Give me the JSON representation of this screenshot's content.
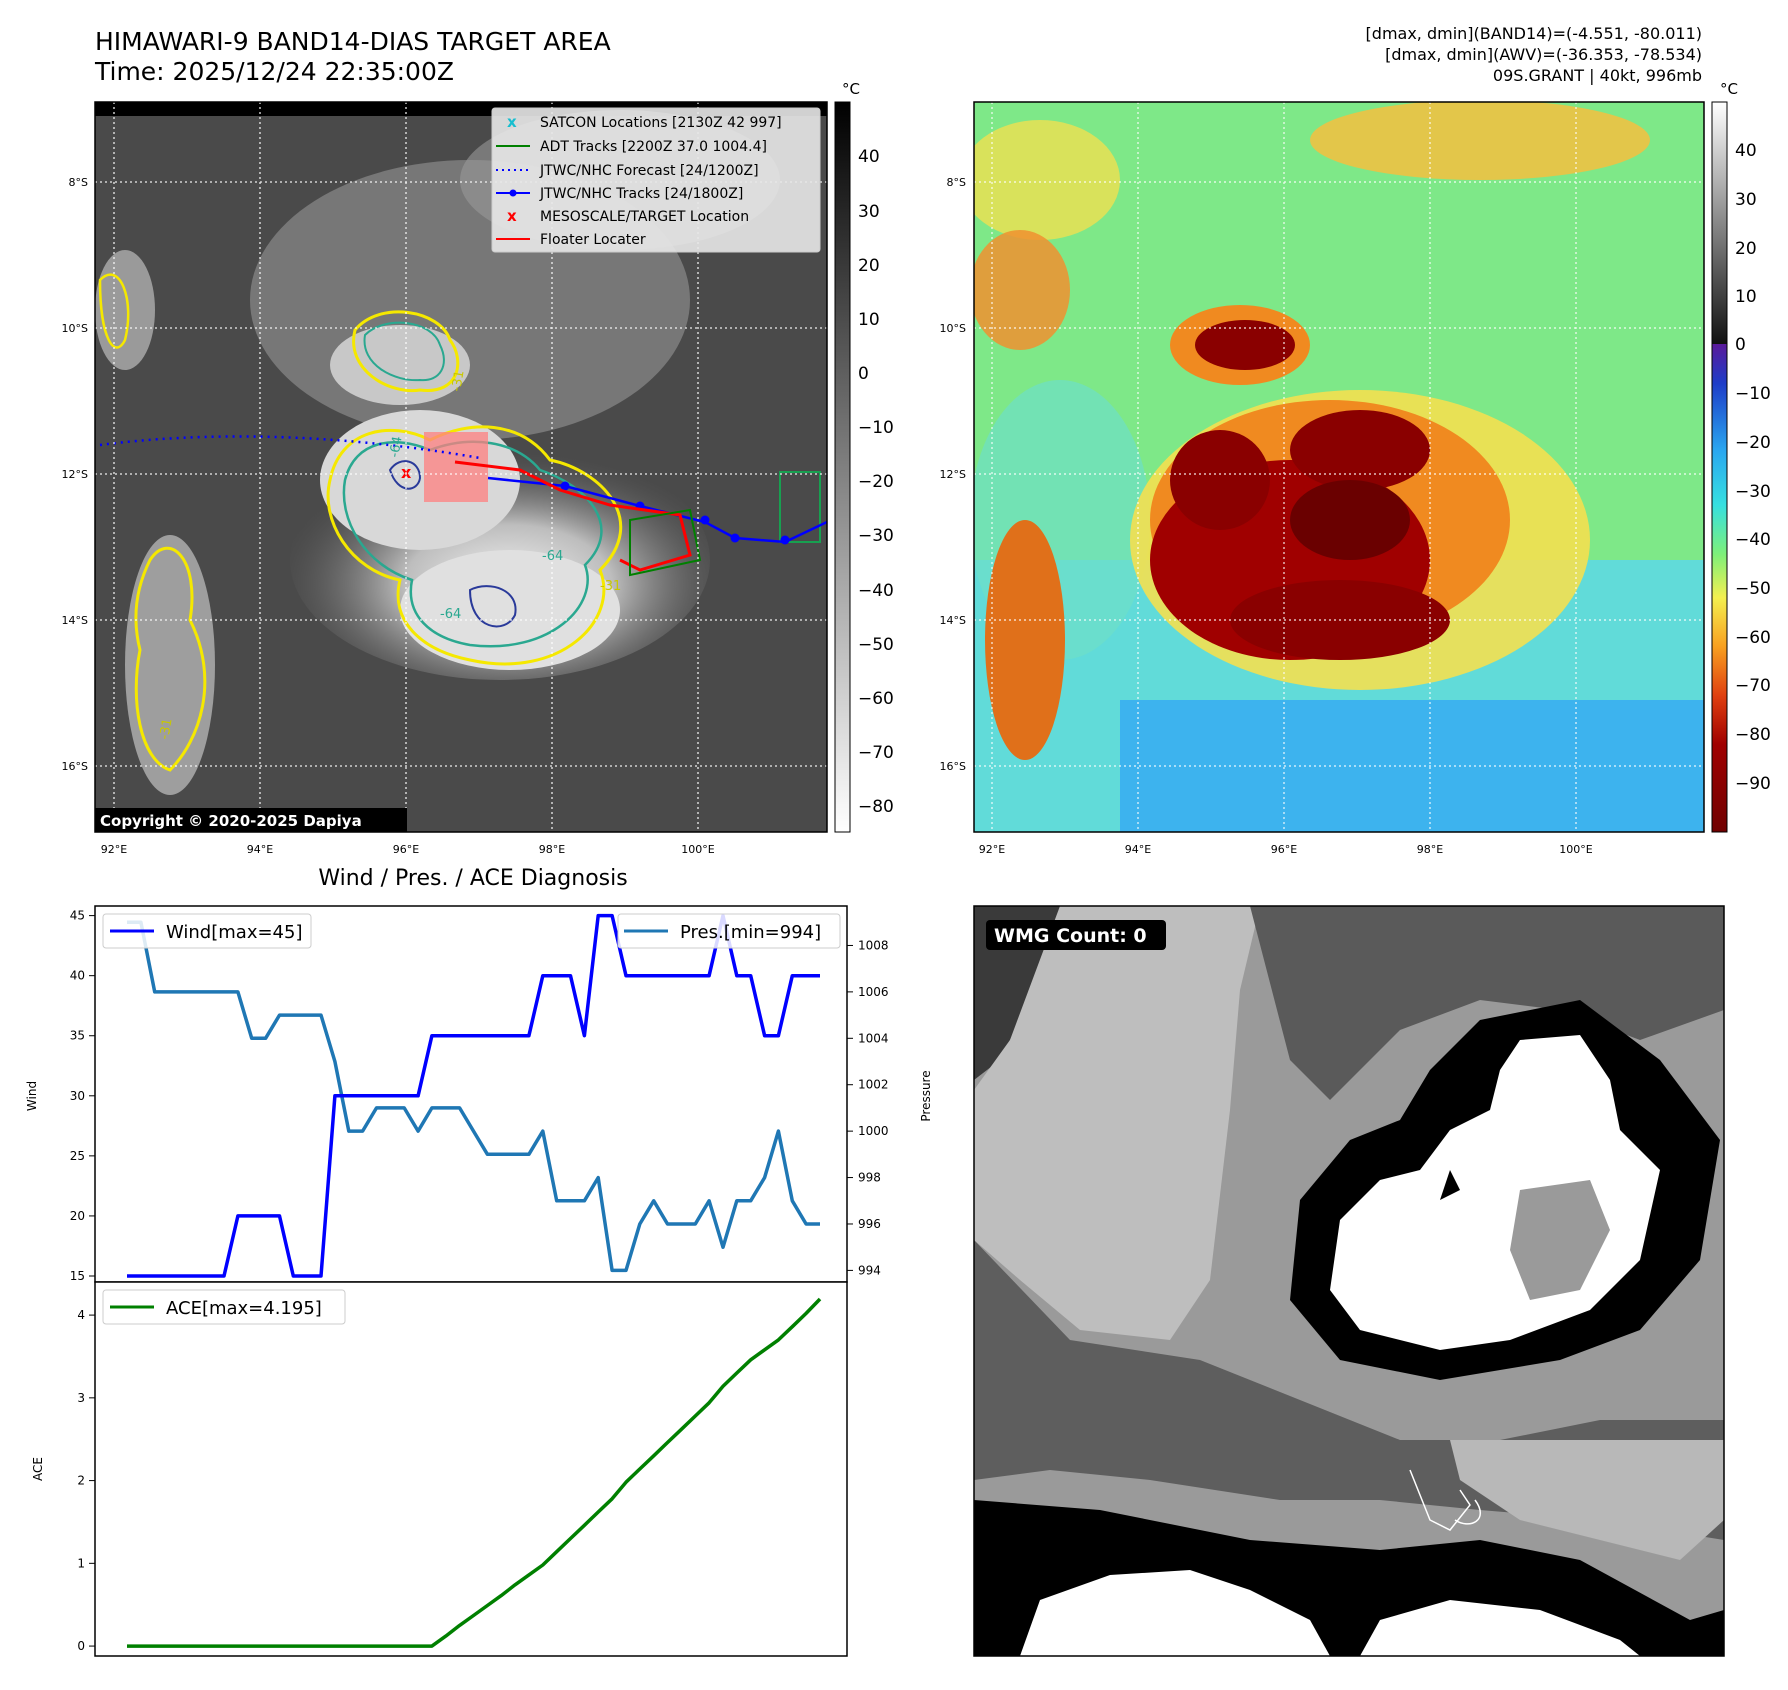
{
  "header": {
    "title_line1": "HIMAWARI-9 BAND14-DIAS TARGET AREA",
    "title_line2": "Time: 2025/12/24 22:35:00Z",
    "info_line1": "[dmax, dmin](BAND14)=(-4.551, -80.011)",
    "info_line2": "[dmax, dmin](AWV)=(-36.353, -78.534)",
    "info_line3": "09S.GRANT | 40kt, 996mb"
  },
  "map_ir": {
    "lat_labels": [
      "8°S",
      "10°S",
      "12°S",
      "14°S",
      "16°S"
    ],
    "lon_labels": [
      "92°E",
      "94°E",
      "96°E",
      "98°E",
      "100°E"
    ],
    "contour_labels": [
      "-31",
      "-64",
      "-31",
      "-64",
      "-64",
      "-31"
    ],
    "copyright": "Copyright © 2020-2025 Dapiya",
    "legend": [
      {
        "label": "SATCON Locations [2130Z 42 997]",
        "color": "#17becf",
        "marker": "x"
      },
      {
        "label": "ADT Tracks [2200Z 37.0 1004.4]",
        "color": "#008000",
        "marker": "line"
      },
      {
        "label": "JTWC/NHC Forecast [24/1200Z]",
        "color": "#0000ff",
        "marker": "dotted"
      },
      {
        "label": "JTWC/NHC Tracks [24/1800Z]",
        "color": "#0000ff",
        "marker": "dot-line"
      },
      {
        "label": "MESOSCALE/TARGET Location",
        "color": "#ff0000",
        "marker": "x"
      },
      {
        "label": "Floater Locater",
        "color": "#ff0000",
        "marker": "line"
      }
    ],
    "colorbar": {
      "unit": "°C",
      "ticks": [
        "40",
        "30",
        "20",
        "10",
        "0",
        "−10",
        "−20",
        "−30",
        "−40",
        "−50",
        "−60",
        "−70",
        "−80"
      ]
    }
  },
  "map_awv": {
    "lat_labels": [
      "8°S",
      "10°S",
      "12°S",
      "14°S",
      "16°S"
    ],
    "lon_labels": [
      "92°E",
      "94°E",
      "96°E",
      "98°E",
      "100°E"
    ],
    "colorbar": {
      "unit": "°C",
      "ticks": [
        "40",
        "30",
        "20",
        "10",
        "0",
        "−10",
        "−20",
        "−30",
        "−40",
        "−50",
        "−60",
        "−70",
        "−80",
        "−90"
      ]
    }
  },
  "wmg": {
    "label": "WMG Count: 0"
  },
  "chart_data": [
    {
      "type": "line",
      "title": "Wind / Pres. / ACE Diagnosis",
      "ylabel": "Wind",
      "y2label": "Pressure",
      "ylim": [
        14.5,
        45.8
      ],
      "y2lim": [
        993.5,
        1009.7
      ],
      "yticks": [
        "15",
        "20",
        "25",
        "30",
        "35",
        "40",
        "45"
      ],
      "y2ticks": [
        "994",
        "996",
        "998",
        "1000",
        "1002",
        "1004",
        "1006",
        "1008"
      ],
      "x": [
        0,
        1,
        2,
        3,
        4,
        5,
        6,
        7,
        8,
        9,
        10,
        11,
        12,
        13,
        14,
        15,
        16,
        17,
        18,
        19,
        20,
        21,
        22,
        23,
        24,
        25,
        26,
        27,
        28,
        29,
        30,
        31,
        32,
        33,
        34,
        35,
        36,
        37,
        38,
        39,
        40,
        41,
        42,
        43,
        44,
        45,
        46,
        47,
        48,
        49,
        50
      ],
      "series": [
        {
          "name": "Wind[max=45]",
          "color": "#0000ff",
          "values": [
            15,
            15,
            15,
            15,
            15,
            15,
            15,
            15,
            20,
            20,
            20,
            20,
            15,
            15,
            15,
            30,
            30,
            30,
            30,
            30,
            30,
            30,
            35,
            35,
            35,
            35,
            35,
            35,
            35,
            35,
            40,
            40,
            40,
            35,
            45,
            45,
            40,
            40,
            40,
            40,
            40,
            40,
            40,
            45,
            40,
            40,
            35,
            35,
            40,
            40,
            40
          ]
        },
        {
          "name": "Pres.[min=994]",
          "color": "#1f77b4",
          "values": [
            1009,
            1009,
            1006,
            1006,
            1006,
            1006,
            1006,
            1006,
            1006,
            1004,
            1004,
            1005,
            1005,
            1005,
            1005,
            1003,
            1000,
            1000,
            1001,
            1001,
            1001,
            1000,
            1001,
            1001,
            1001,
            1000,
            999,
            999,
            999,
            999,
            1000,
            997,
            997,
            997,
            998,
            994,
            994,
            996,
            997,
            996,
            996,
            996,
            997,
            995,
            997,
            997,
            998,
            1000,
            997,
            996,
            996
          ]
        }
      ]
    },
    {
      "type": "line",
      "ylabel": "ACE",
      "ylim": [
        -0.12,
        4.4
      ],
      "yticks": [
        "0",
        "1",
        "2",
        "3",
        "4"
      ],
      "x": [
        0,
        1,
        2,
        3,
        4,
        5,
        6,
        7,
        8,
        9,
        10,
        11,
        12,
        13,
        14,
        15,
        16,
        17,
        18,
        19,
        20,
        21,
        22,
        23,
        24,
        25,
        26,
        27,
        28,
        29,
        30,
        31,
        32,
        33,
        34,
        35,
        36,
        37,
        38,
        39,
        40,
        41,
        42,
        43,
        44,
        45,
        46,
        47,
        48,
        49,
        50
      ],
      "series": [
        {
          "name": "ACE[max=4.195]",
          "color": "#008000",
          "values": [
            0,
            0,
            0,
            0,
            0,
            0,
            0,
            0,
            0,
            0,
            0,
            0,
            0,
            0,
            0,
            0,
            0,
            0,
            0,
            0,
            0,
            0,
            0,
            0.12,
            0.25,
            0.37,
            0.49,
            0.61,
            0.74,
            0.86,
            0.98,
            1.14,
            1.3,
            1.46,
            1.62,
            1.78,
            1.98,
            2.14,
            2.3,
            2.46,
            2.62,
            2.78,
            2.94,
            3.14,
            3.3,
            3.46,
            3.58,
            3.7,
            3.86,
            4.02,
            4.195
          ]
        }
      ]
    }
  ]
}
